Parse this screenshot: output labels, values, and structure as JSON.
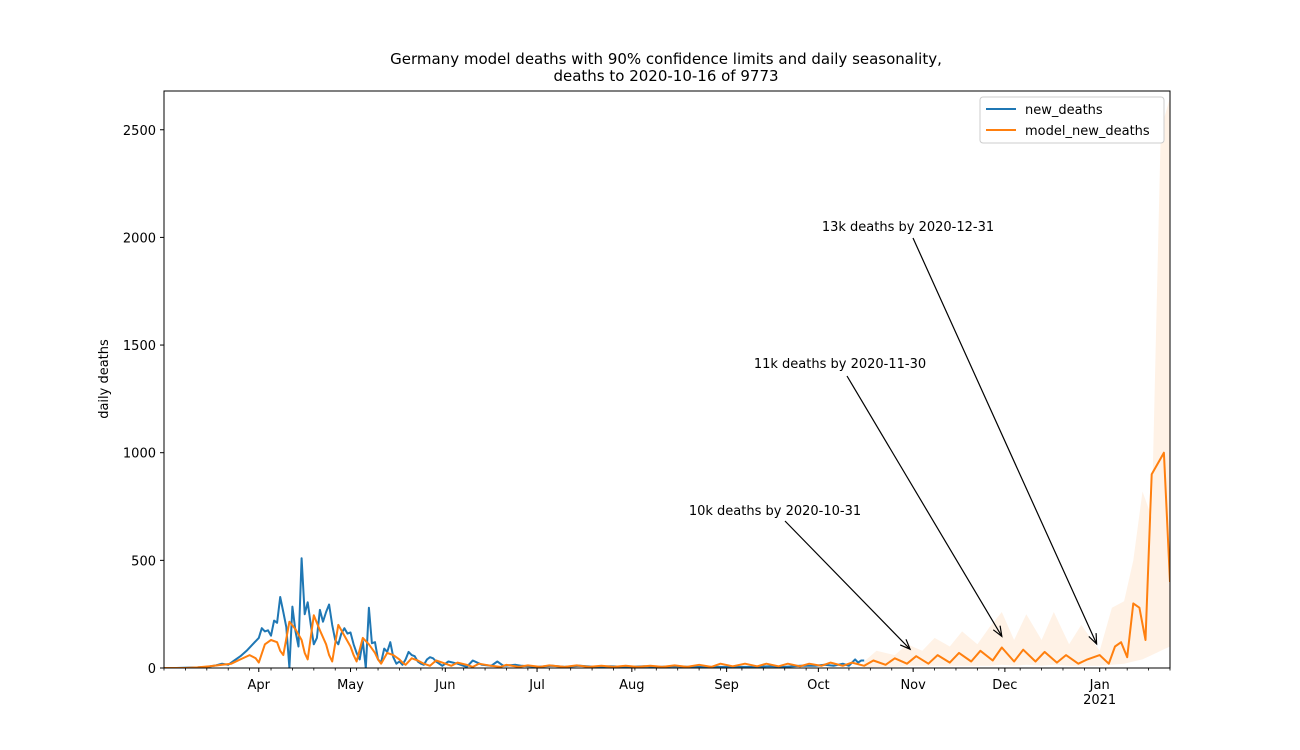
{
  "chart_data": {
    "type": "line",
    "title_line1": "Germany model deaths with 90% confidence limits and daily seasonality,",
    "title_line2": "deaths to 2020-10-16 of 9773",
    "xlabel": "",
    "ylabel": "daily deaths",
    "x_start": "2020-03-01",
    "x_end": "2021-01-24",
    "ylim": [
      0,
      2680
    ],
    "yticks": [
      0,
      500,
      1000,
      1500,
      2000,
      2500
    ],
    "xticks": [
      {
        "date": "2020-04-01",
        "label": "Apr",
        "sublabel": ""
      },
      {
        "date": "2020-05-01",
        "label": "May",
        "sublabel": ""
      },
      {
        "date": "2020-06-01",
        "label": "Jun",
        "sublabel": ""
      },
      {
        "date": "2020-07-01",
        "label": "Jul",
        "sublabel": ""
      },
      {
        "date": "2020-08-01",
        "label": "Aug",
        "sublabel": ""
      },
      {
        "date": "2020-09-01",
        "label": "Sep",
        "sublabel": ""
      },
      {
        "date": "2020-10-01",
        "label": "Oct",
        "sublabel": ""
      },
      {
        "date": "2020-11-01",
        "label": "Nov",
        "sublabel": ""
      },
      {
        "date": "2020-12-01",
        "label": "Dec",
        "sublabel": ""
      },
      {
        "date": "2021-01-01",
        "label": "Jan",
        "sublabel": "2021"
      }
    ],
    "grid": false,
    "legend_position": "top-right",
    "series": [
      {
        "name": "new_deaths",
        "color": "#1f77b4",
        "points": [
          [
            "2020-03-01",
            0
          ],
          [
            "2020-03-05",
            0
          ],
          [
            "2020-03-09",
            2
          ],
          [
            "2020-03-12",
            3
          ],
          [
            "2020-03-15",
            5
          ],
          [
            "2020-03-18",
            12
          ],
          [
            "2020-03-20",
            20
          ],
          [
            "2020-03-22",
            15
          ],
          [
            "2020-03-24",
            35
          ],
          [
            "2020-03-26",
            55
          ],
          [
            "2020-03-28",
            80
          ],
          [
            "2020-03-30",
            110
          ],
          [
            "2020-04-01",
            140
          ],
          [
            "2020-04-02",
            185
          ],
          [
            "2020-04-03",
            170
          ],
          [
            "2020-04-04",
            175
          ],
          [
            "2020-04-05",
            150
          ],
          [
            "2020-04-06",
            220
          ],
          [
            "2020-04-07",
            210
          ],
          [
            "2020-04-08",
            330
          ],
          [
            "2020-04-09",
            260
          ],
          [
            "2020-04-10",
            190
          ],
          [
            "2020-04-11",
            0
          ],
          [
            "2020-04-12",
            285
          ],
          [
            "2020-04-13",
            170
          ],
          [
            "2020-04-14",
            100
          ],
          [
            "2020-04-15",
            510
          ],
          [
            "2020-04-16",
            250
          ],
          [
            "2020-04-17",
            305
          ],
          [
            "2020-04-18",
            200
          ],
          [
            "2020-04-19",
            110
          ],
          [
            "2020-04-20",
            140
          ],
          [
            "2020-04-21",
            270
          ],
          [
            "2020-04-22",
            215
          ],
          [
            "2020-04-23",
            260
          ],
          [
            "2020-04-24",
            295
          ],
          [
            "2020-04-25",
            200
          ],
          [
            "2020-04-26",
            130
          ],
          [
            "2020-04-27",
            110
          ],
          [
            "2020-04-28",
            160
          ],
          [
            "2020-04-29",
            185
          ],
          [
            "2020-04-30",
            160
          ],
          [
            "2020-05-01",
            165
          ],
          [
            "2020-05-02",
            110
          ],
          [
            "2020-05-03",
            70
          ],
          [
            "2020-05-04",
            40
          ],
          [
            "2020-05-05",
            125
          ],
          [
            "2020-05-06",
            0
          ],
          [
            "2020-05-07",
            280
          ],
          [
            "2020-05-08",
            115
          ],
          [
            "2020-05-09",
            120
          ],
          [
            "2020-05-10",
            40
          ],
          [
            "2020-05-11",
            25
          ],
          [
            "2020-05-12",
            90
          ],
          [
            "2020-05-13",
            75
          ],
          [
            "2020-05-14",
            120
          ],
          [
            "2020-05-15",
            50
          ],
          [
            "2020-05-16",
            20
          ],
          [
            "2020-05-17",
            30
          ],
          [
            "2020-05-18",
            15
          ],
          [
            "2020-05-19",
            40
          ],
          [
            "2020-05-20",
            75
          ],
          [
            "2020-05-21",
            60
          ],
          [
            "2020-05-22",
            55
          ],
          [
            "2020-05-23",
            30
          ],
          [
            "2020-05-24",
            20
          ],
          [
            "2020-05-25",
            15
          ],
          [
            "2020-05-26",
            40
          ],
          [
            "2020-05-27",
            50
          ],
          [
            "2020-05-28",
            45
          ],
          [
            "2020-05-29",
            30
          ],
          [
            "2020-05-31",
            10
          ],
          [
            "2020-06-02",
            30
          ],
          [
            "2020-06-05",
            20
          ],
          [
            "2020-06-08",
            5
          ],
          [
            "2020-06-10",
            35
          ],
          [
            "2020-06-13",
            15
          ],
          [
            "2020-06-16",
            10
          ],
          [
            "2020-06-18",
            30
          ],
          [
            "2020-06-20",
            10
          ],
          [
            "2020-06-24",
            15
          ],
          [
            "2020-06-26",
            10
          ],
          [
            "2020-07-01",
            5
          ],
          [
            "2020-07-06",
            10
          ],
          [
            "2020-07-10",
            5
          ],
          [
            "2020-07-15",
            10
          ],
          [
            "2020-07-20",
            5
          ],
          [
            "2020-07-25",
            8
          ],
          [
            "2020-07-30",
            5
          ],
          [
            "2020-08-05",
            8
          ],
          [
            "2020-08-10",
            5
          ],
          [
            "2020-08-15",
            8
          ],
          [
            "2020-08-20",
            5
          ],
          [
            "2020-08-25",
            5
          ],
          [
            "2020-08-30",
            5
          ],
          [
            "2020-09-05",
            5
          ],
          [
            "2020-09-10",
            5
          ],
          [
            "2020-09-15",
            8
          ],
          [
            "2020-09-20",
            5
          ],
          [
            "2020-09-25",
            10
          ],
          [
            "2020-09-30",
            10
          ],
          [
            "2020-10-03",
            15
          ],
          [
            "2020-10-06",
            10
          ],
          [
            "2020-10-09",
            20
          ],
          [
            "2020-10-11",
            10
          ],
          [
            "2020-10-13",
            40
          ],
          [
            "2020-10-14",
            25
          ],
          [
            "2020-10-15",
            35
          ],
          [
            "2020-10-16",
            35
          ]
        ]
      },
      {
        "name": "model_new_deaths",
        "color": "#ff7f0e",
        "points": [
          [
            "2020-03-01",
            0
          ],
          [
            "2020-03-08",
            0
          ],
          [
            "2020-03-12",
            3
          ],
          [
            "2020-03-16",
            8
          ],
          [
            "2020-03-20",
            15
          ],
          [
            "2020-03-23",
            20
          ],
          [
            "2020-03-26",
            40
          ],
          [
            "2020-03-29",
            60
          ],
          [
            "2020-03-31",
            45
          ],
          [
            "2020-04-01",
            25
          ],
          [
            "2020-04-03",
            110
          ],
          [
            "2020-04-05",
            130
          ],
          [
            "2020-04-07",
            120
          ],
          [
            "2020-04-08",
            80
          ],
          [
            "2020-04-09",
            60
          ],
          [
            "2020-04-11",
            215
          ],
          [
            "2020-04-13",
            180
          ],
          [
            "2020-04-15",
            130
          ],
          [
            "2020-04-16",
            70
          ],
          [
            "2020-04-17",
            40
          ],
          [
            "2020-04-19",
            245
          ],
          [
            "2020-04-21",
            175
          ],
          [
            "2020-04-23",
            110
          ],
          [
            "2020-04-24",
            60
          ],
          [
            "2020-04-25",
            30
          ],
          [
            "2020-04-27",
            200
          ],
          [
            "2020-04-29",
            150
          ],
          [
            "2020-05-01",
            100
          ],
          [
            "2020-05-02",
            60
          ],
          [
            "2020-05-03",
            30
          ],
          [
            "2020-05-05",
            140
          ],
          [
            "2020-05-07",
            110
          ],
          [
            "2020-05-09",
            70
          ],
          [
            "2020-05-10",
            40
          ],
          [
            "2020-05-11",
            20
          ],
          [
            "2020-05-13",
            70
          ],
          [
            "2020-05-15",
            60
          ],
          [
            "2020-05-17",
            40
          ],
          [
            "2020-05-18",
            25
          ],
          [
            "2020-05-19",
            15
          ],
          [
            "2020-05-21",
            45
          ],
          [
            "2020-05-23",
            35
          ],
          [
            "2020-05-25",
            20
          ],
          [
            "2020-05-27",
            10
          ],
          [
            "2020-05-29",
            35
          ],
          [
            "2020-05-31",
            25
          ],
          [
            "2020-06-03",
            10
          ],
          [
            "2020-06-05",
            25
          ],
          [
            "2020-06-08",
            15
          ],
          [
            "2020-06-10",
            5
          ],
          [
            "2020-06-12",
            20
          ],
          [
            "2020-06-16",
            10
          ],
          [
            "2020-06-19",
            5
          ],
          [
            "2020-06-21",
            15
          ],
          [
            "2020-06-25",
            5
          ],
          [
            "2020-06-28",
            12
          ],
          [
            "2020-07-02",
            5
          ],
          [
            "2020-07-05",
            12
          ],
          [
            "2020-07-10",
            5
          ],
          [
            "2020-07-14",
            12
          ],
          [
            "2020-07-18",
            5
          ],
          [
            "2020-07-22",
            10
          ],
          [
            "2020-07-26",
            5
          ],
          [
            "2020-07-30",
            10
          ],
          [
            "2020-08-03",
            5
          ],
          [
            "2020-08-07",
            10
          ],
          [
            "2020-08-11",
            5
          ],
          [
            "2020-08-15",
            12
          ],
          [
            "2020-08-19",
            5
          ],
          [
            "2020-08-23",
            15
          ],
          [
            "2020-08-27",
            5
          ],
          [
            "2020-08-30",
            20
          ],
          [
            "2020-09-03",
            8
          ],
          [
            "2020-09-07",
            20
          ],
          [
            "2020-09-11",
            8
          ],
          [
            "2020-09-14",
            20
          ],
          [
            "2020-09-18",
            8
          ],
          [
            "2020-09-21",
            20
          ],
          [
            "2020-09-25",
            8
          ],
          [
            "2020-09-28",
            20
          ],
          [
            "2020-10-02",
            10
          ],
          [
            "2020-10-05",
            25
          ],
          [
            "2020-10-09",
            10
          ],
          [
            "2020-10-12",
            25
          ],
          [
            "2020-10-16",
            10
          ],
          [
            "2020-10-19",
            35
          ],
          [
            "2020-10-23",
            15
          ],
          [
            "2020-10-26",
            45
          ],
          [
            "2020-10-30",
            20
          ],
          [
            "2020-11-02",
            55
          ],
          [
            "2020-11-06",
            20
          ],
          [
            "2020-11-09",
            60
          ],
          [
            "2020-11-13",
            25
          ],
          [
            "2020-11-16",
            70
          ],
          [
            "2020-11-20",
            30
          ],
          [
            "2020-11-23",
            80
          ],
          [
            "2020-11-27",
            35
          ],
          [
            "2020-11-30",
            95
          ],
          [
            "2020-12-04",
            30
          ],
          [
            "2020-12-07",
            85
          ],
          [
            "2020-12-11",
            30
          ],
          [
            "2020-12-14",
            75
          ],
          [
            "2020-12-18",
            25
          ],
          [
            "2020-12-21",
            60
          ],
          [
            "2020-12-25",
            20
          ],
          [
            "2020-12-28",
            40
          ],
          [
            "2021-01-01",
            60
          ],
          [
            "2021-01-04",
            20
          ],
          [
            "2021-01-06",
            100
          ],
          [
            "2021-01-08",
            120
          ],
          [
            "2021-01-10",
            50
          ],
          [
            "2021-01-12",
            300
          ],
          [
            "2021-01-14",
            280
          ],
          [
            "2021-01-16",
            130
          ],
          [
            "2021-01-18",
            900
          ],
          [
            "2021-01-20",
            950
          ],
          [
            "2021-01-22",
            1000
          ],
          [
            "2021-01-24",
            400
          ]
        ]
      }
    ],
    "confidence_band": {
      "color": "#ff7f0e",
      "points": [
        [
          "2020-10-16",
          30,
          0
        ],
        [
          "2020-10-20",
          80,
          5
        ],
        [
          "2020-10-26",
          60,
          5
        ],
        [
          "2020-10-30",
          110,
          10
        ],
        [
          "2020-11-04",
          80,
          10
        ],
        [
          "2020-11-08",
          140,
          10
        ],
        [
          "2020-11-13",
          100,
          10
        ],
        [
          "2020-11-17",
          170,
          10
        ],
        [
          "2020-11-22",
          110,
          10
        ],
        [
          "2020-11-26",
          190,
          10
        ],
        [
          "2020-11-30",
          260,
          15
        ],
        [
          "2020-12-04",
          130,
          10
        ],
        [
          "2020-12-08",
          250,
          15
        ],
        [
          "2020-12-13",
          130,
          10
        ],
        [
          "2020-12-17",
          260,
          15
        ],
        [
          "2020-12-22",
          110,
          10
        ],
        [
          "2020-12-26",
          200,
          10
        ],
        [
          "2021-01-01",
          80,
          10
        ],
        [
          "2021-01-05",
          280,
          15
        ],
        [
          "2021-01-09",
          310,
          20
        ],
        [
          "2021-01-12",
          500,
          30
        ],
        [
          "2021-01-15",
          820,
          40
        ],
        [
          "2021-01-18",
          700,
          60
        ],
        [
          "2021-01-21",
          2500,
          80
        ],
        [
          "2021-01-24",
          2650,
          100
        ]
      ]
    },
    "annotations": [
      {
        "text": "10k deaths by 2020-10-31",
        "date": "2020-10-31",
        "value": 50
      },
      {
        "text": "11k deaths by 2020-11-30",
        "date": "2020-11-30",
        "value": 110
      },
      {
        "text": "13k deaths by 2020-12-31",
        "date": "2020-12-31",
        "value": 75
      }
    ]
  }
}
